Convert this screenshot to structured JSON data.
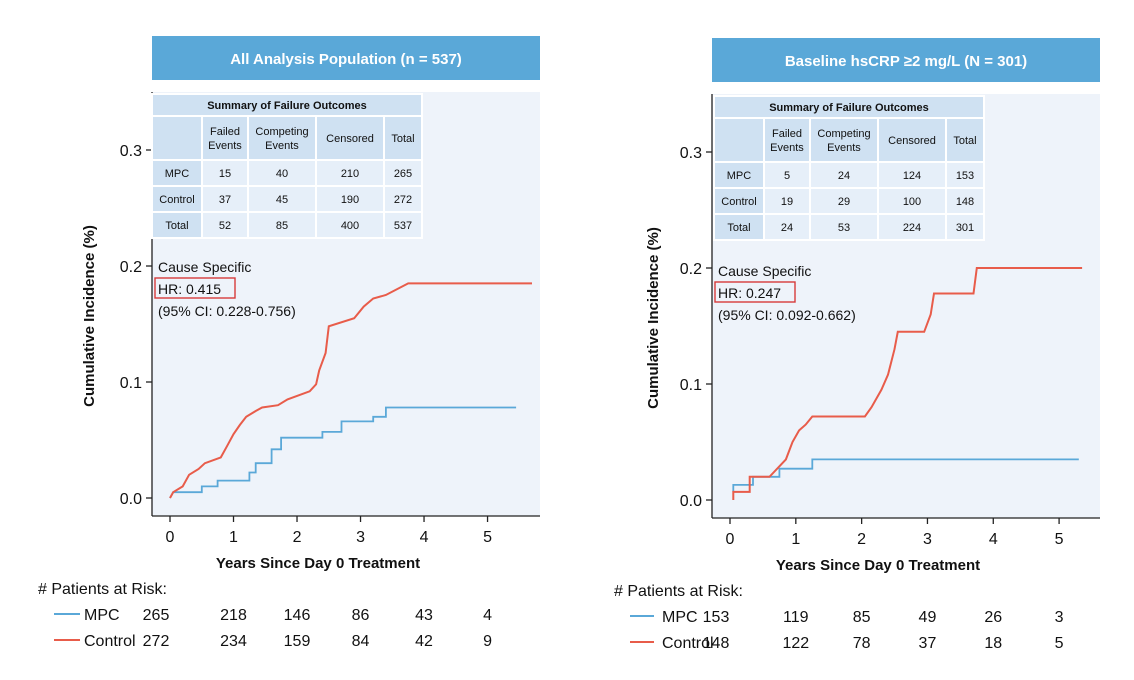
{
  "chart_data": [
    {
      "type": "line",
      "title": "All Analysis Population (n = 537)",
      "xlabel": "Years Since Day 0 Treatment",
      "ylabel": "Cumulative Incidence (%)",
      "xlim": [
        0,
        5.7
      ],
      "ylim": [
        0,
        0.35
      ],
      "xticks": [
        "0",
        "1",
        "2",
        "3",
        "4",
        "5"
      ],
      "yticks": [
        "0.0",
        "0.1",
        "0.2",
        "0.3"
      ],
      "summary_table": {
        "title": "Summary of Failure Outcomes",
        "columns": [
          "",
          "Failed Events",
          "Competing Events",
          "Censored",
          "Total"
        ],
        "rows": [
          [
            "MPC",
            "15",
            "40",
            "210",
            "265"
          ],
          [
            "Control",
            "37",
            "45",
            "190",
            "272"
          ],
          [
            "Total",
            "52",
            "85",
            "400",
            "537"
          ]
        ]
      },
      "annotation": {
        "line1": "Cause Specific",
        "hr": "HR: 0.415",
        "ci": "(95% CI: 0.228-0.756)"
      },
      "risk_table": {
        "title": "# Patients at Risk:",
        "rows": [
          {
            "name": "MPC",
            "values": [
              "265",
              "218",
              "146",
              "86",
              "43",
              "4"
            ]
          },
          {
            "name": "Control",
            "values": [
              "272",
              "234",
              "159",
              "84",
              "42",
              "9"
            ]
          }
        ]
      },
      "series": [
        {
          "name": "MPC",
          "color": "#5aa8d8",
          "points": [
            [
              0,
              0
            ],
            [
              0.05,
              0.005
            ],
            [
              0.5,
              0.005
            ],
            [
              0.5,
              0.01
            ],
            [
              0.75,
              0.01
            ],
            [
              0.75,
              0.015
            ],
            [
              1.25,
              0.015
            ],
            [
              1.25,
              0.022
            ],
            [
              1.35,
              0.022
            ],
            [
              1.35,
              0.03
            ],
            [
              1.6,
              0.03
            ],
            [
              1.6,
              0.042
            ],
            [
              1.75,
              0.042
            ],
            [
              1.75,
              0.052
            ],
            [
              2.4,
              0.052
            ],
            [
              2.4,
              0.057
            ],
            [
              2.7,
              0.057
            ],
            [
              2.7,
              0.066
            ],
            [
              3.2,
              0.066
            ],
            [
              3.2,
              0.07
            ],
            [
              3.4,
              0.07
            ],
            [
              3.4,
              0.078
            ],
            [
              5.45,
              0.078
            ]
          ]
        },
        {
          "name": "Control",
          "color": "#e85c4a",
          "points": [
            [
              0,
              0
            ],
            [
              0.05,
              0.005
            ],
            [
              0.2,
              0.01
            ],
            [
              0.3,
              0.02
            ],
            [
              0.45,
              0.025
            ],
            [
              0.55,
              0.03
            ],
            [
              0.8,
              0.035
            ],
            [
              0.9,
              0.045
            ],
            [
              1.0,
              0.055
            ],
            [
              1.1,
              0.063
            ],
            [
              1.2,
              0.07
            ],
            [
              1.35,
              0.075
            ],
            [
              1.45,
              0.078
            ],
            [
              1.7,
              0.08
            ],
            [
              1.85,
              0.085
            ],
            [
              2.0,
              0.088
            ],
            [
              2.2,
              0.092
            ],
            [
              2.3,
              0.098
            ],
            [
              2.35,
              0.11
            ],
            [
              2.45,
              0.125
            ],
            [
              2.5,
              0.148
            ],
            [
              2.9,
              0.155
            ],
            [
              3.05,
              0.165
            ],
            [
              3.2,
              0.172
            ],
            [
              3.4,
              0.175
            ],
            [
              3.75,
              0.185
            ],
            [
              5.7,
              0.185
            ]
          ]
        }
      ]
    },
    {
      "type": "line",
      "title": "Baseline hsCRP ≥2 mg/L (N = 301)",
      "xlabel": "Years Since Day 0 Treatment",
      "ylabel": "Cumulative Incidence (%)",
      "xlim": [
        0,
        5.5
      ],
      "ylim": [
        0,
        0.35
      ],
      "xticks": [
        "0",
        "1",
        "2",
        "3",
        "4",
        "5"
      ],
      "yticks": [
        "0.0",
        "0.1",
        "0.2",
        "0.3"
      ],
      "summary_table": {
        "title": "Summary of Failure Outcomes",
        "columns": [
          "",
          "Failed Events",
          "Competing Events",
          "Censored",
          "Total"
        ],
        "rows": [
          [
            "MPC",
            "5",
            "24",
            "124",
            "153"
          ],
          [
            "Control",
            "19",
            "29",
            "100",
            "148"
          ],
          [
            "Total",
            "24",
            "53",
            "224",
            "301"
          ]
        ]
      },
      "annotation": {
        "line1": "Cause Specific",
        "hr": "HR: 0.247",
        "ci": "(95% CI: 0.092-0.662)"
      },
      "risk_table": {
        "title": "# Patients at Risk:",
        "rows": [
          {
            "name": "MPC",
            "values": [
              "153",
              "119",
              "85",
              "49",
              "26",
              "3"
            ]
          },
          {
            "name": "Control",
            "values": [
              "148",
              "122",
              "78",
              "37",
              "18",
              "5"
            ]
          }
        ]
      },
      "series": [
        {
          "name": "MPC",
          "color": "#5aa8d8",
          "points": [
            [
              0.05,
              0.007
            ],
            [
              0.05,
              0.013
            ],
            [
              0.35,
              0.013
            ],
            [
              0.35,
              0.02
            ],
            [
              0.75,
              0.02
            ],
            [
              0.75,
              0.027
            ],
            [
              1.25,
              0.027
            ],
            [
              1.25,
              0.035
            ],
            [
              5.3,
              0.035
            ]
          ]
        },
        {
          "name": "Control",
          "color": "#e85c4a",
          "points": [
            [
              0.05,
              0
            ],
            [
              0.05,
              0.007
            ],
            [
              0.3,
              0.007
            ],
            [
              0.3,
              0.02
            ],
            [
              0.6,
              0.02
            ],
            [
              0.85,
              0.035
            ],
            [
              0.95,
              0.05
            ],
            [
              1.05,
              0.06
            ],
            [
              1.15,
              0.065
            ],
            [
              1.25,
              0.072
            ],
            [
              2.05,
              0.072
            ],
            [
              2.15,
              0.08
            ],
            [
              2.3,
              0.095
            ],
            [
              2.4,
              0.108
            ],
            [
              2.5,
              0.13
            ],
            [
              2.55,
              0.145
            ],
            [
              2.95,
              0.145
            ],
            [
              3.05,
              0.16
            ],
            [
              3.1,
              0.178
            ],
            [
              3.7,
              0.178
            ],
            [
              3.75,
              0.2
            ],
            [
              5.35,
              0.2
            ]
          ]
        }
      ]
    }
  ]
}
